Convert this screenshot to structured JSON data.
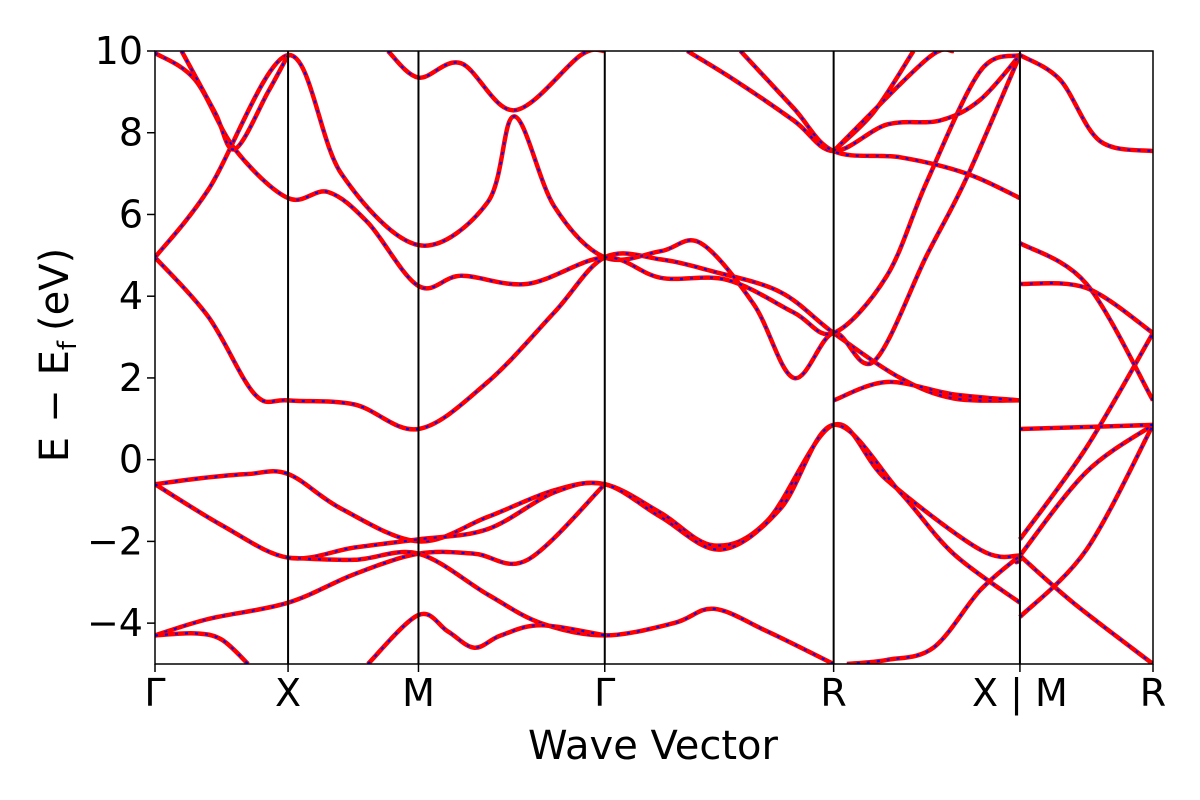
{
  "chart_data": {
    "type": "line",
    "title": "",
    "xlabel": "Wave Vector",
    "ylabel_parts": {
      "e": "E",
      "minus": "−",
      "ef": "E",
      "ef_sub": "f",
      "unit": "(eV)"
    },
    "ylim": [
      -5,
      10
    ],
    "yticks": [
      {
        "value": -4,
        "label": "−4"
      },
      {
        "value": -2,
        "label": "−2"
      },
      {
        "value": 0,
        "label": "0"
      },
      {
        "value": 2,
        "label": "2"
      },
      {
        "value": 4,
        "label": "4"
      },
      {
        "value": 6,
        "label": "6"
      },
      {
        "value": 8,
        "label": "8"
      },
      {
        "value": 10,
        "label": "10"
      }
    ],
    "kpath_ticks": [
      {
        "k": 0.0,
        "label": "Γ"
      },
      {
        "k": 1.0,
        "label": "X"
      },
      {
        "k": 1.98,
        "label": "M"
      },
      {
        "k": 3.38,
        "label": "Γ"
      },
      {
        "k": 5.1,
        "label": "R"
      },
      {
        "k": 6.5,
        "label": "X | M"
      },
      {
        "k": 7.5,
        "label": "R"
      }
    ],
    "kmax": 7.5,
    "grid": false,
    "legend": "none",
    "line_colors": {
      "dft": "#ff0000",
      "fit": "#0000ff"
    },
    "bands": [
      [
        [
          0,
          -0.6
        ],
        [
          0.35,
          -0.45
        ],
        [
          0.7,
          -0.35
        ],
        [
          1.0,
          -0.35
        ],
        [
          1.4,
          -1.2
        ],
        [
          1.98,
          -2.0
        ],
        [
          2.5,
          -1.4
        ],
        [
          3.0,
          -0.75
        ],
        [
          3.38,
          -0.6
        ],
        [
          3.8,
          -1.3
        ],
        [
          4.2,
          -2.1
        ],
        [
          4.6,
          -1.5
        ],
        [
          5.1,
          0.85
        ],
        [
          5.5,
          -0.5
        ],
        [
          6.2,
          -2.2
        ],
        [
          6.5,
          -2.35
        ],
        [
          6.5,
          -2.35
        ],
        [
          7.0,
          -0.3
        ],
        [
          7.5,
          0.85
        ]
      ],
      [
        [
          0,
          -0.6
        ],
        [
          0.5,
          -1.6
        ],
        [
          1.0,
          -2.4
        ],
        [
          1.5,
          -2.15
        ],
        [
          1.98,
          -1.95
        ],
        [
          2.5,
          -1.7
        ],
        [
          3.0,
          -0.8
        ],
        [
          3.38,
          -0.6
        ],
        [
          3.8,
          -1.4
        ],
        [
          4.25,
          -2.2
        ],
        [
          4.7,
          -1.2
        ],
        [
          5.1,
          0.85
        ],
        [
          5.6,
          -0.8
        ],
        [
          6.0,
          -2.3
        ],
        [
          6.5,
          -3.5
        ]
      ],
      [
        [
          0,
          -4.3
        ],
        [
          0.4,
          -3.9
        ],
        [
          1.0,
          -3.5
        ],
        [
          1.5,
          -2.8
        ],
        [
          1.98,
          -2.3
        ],
        [
          2.4,
          -2.3
        ],
        [
          2.8,
          -2.45
        ],
        [
          3.38,
          -0.6
        ]
      ],
      [
        [
          0,
          -4.3
        ],
        [
          0.3,
          -4.25
        ],
        [
          0.5,
          -4.4
        ],
        [
          0.7,
          -5.0
        ]
      ],
      [
        [
          1.0,
          -2.4
        ],
        [
          1.5,
          -2.45
        ],
        [
          1.98,
          -2.3
        ],
        [
          2.5,
          -3.3
        ],
        [
          2.9,
          -4.0
        ],
        [
          3.38,
          -4.3
        ],
        [
          3.9,
          -4.0
        ],
        [
          4.2,
          -3.65
        ],
        [
          4.6,
          -4.2
        ],
        [
          5.1,
          -5.0
        ]
      ],
      [
        [
          1.6,
          -5.0
        ],
        [
          1.98,
          -3.8
        ],
        [
          2.2,
          -4.2
        ],
        [
          2.4,
          -4.6
        ],
        [
          2.6,
          -4.3
        ],
        [
          2.9,
          -4.05
        ],
        [
          3.38,
          -4.3
        ]
      ],
      [
        [
          5.2,
          -5.0
        ],
        [
          5.5,
          -4.9
        ],
        [
          5.85,
          -4.6
        ],
        [
          6.2,
          -3.2
        ],
        [
          6.5,
          -2.35
        ]
      ],
      [
        [
          6.5,
          -1.95
        ],
        [
          7.0,
          0.3
        ],
        [
          7.5,
          3.1
        ]
      ],
      [
        [
          6.5,
          -2.35
        ],
        [
          6.9,
          -3.5
        ],
        [
          7.5,
          -5.0
        ]
      ],
      [
        [
          6.5,
          -3.85
        ],
        [
          7.0,
          -2.2
        ],
        [
          7.5,
          0.85
        ]
      ],
      [
        [
          6.5,
          0.75
        ],
        [
          7.0,
          0.8
        ],
        [
          7.5,
          0.85
        ]
      ],
      [
        [
          0,
          4.95
        ],
        [
          0.4,
          3.5
        ],
        [
          0.75,
          1.6
        ],
        [
          1.0,
          1.45
        ],
        [
          1.5,
          1.35
        ],
        [
          1.98,
          0.75
        ],
        [
          2.5,
          1.9
        ],
        [
          3.0,
          3.6
        ],
        [
          3.38,
          4.95
        ],
        [
          3.8,
          4.9
        ],
        [
          4.2,
          4.6
        ],
        [
          4.7,
          4.1
        ],
        [
          5.1,
          3.1
        ],
        [
          5.6,
          2.0
        ],
        [
          6.0,
          1.5
        ],
        [
          6.5,
          1.45
        ]
      ],
      [
        [
          0,
          4.95
        ],
        [
          0.4,
          6.6
        ],
        [
          1.0,
          9.9
        ],
        [
          1.4,
          7.0
        ],
        [
          1.98,
          5.25
        ],
        [
          2.5,
          6.3
        ],
        [
          2.7,
          8.4
        ],
        [
          3.0,
          6.2
        ],
        [
          3.38,
          4.95
        ],
        [
          3.8,
          5.1
        ],
        [
          4.1,
          5.3
        ],
        [
          4.5,
          3.8
        ],
        [
          4.8,
          2.0
        ],
        [
          5.1,
          3.1
        ],
        [
          5.4,
          2.4
        ],
        [
          5.8,
          5.0
        ],
        [
          6.1,
          6.9
        ],
        [
          6.5,
          9.9
        ]
      ],
      [
        [
          0,
          9.95
        ],
        [
          0.3,
          9.3
        ],
        [
          0.6,
          7.6
        ],
        [
          1.0,
          6.4
        ],
        [
          1.3,
          6.55
        ],
        [
          1.6,
          5.8
        ],
        [
          1.98,
          4.25
        ],
        [
          2.3,
          4.5
        ],
        [
          2.8,
          4.3
        ],
        [
          3.38,
          4.95
        ],
        [
          3.8,
          4.45
        ],
        [
          4.3,
          4.4
        ],
        [
          4.8,
          3.6
        ],
        [
          5.1,
          3.1
        ],
        [
          5.5,
          4.5
        ],
        [
          5.8,
          6.8
        ],
        [
          6.2,
          9.5
        ],
        [
          6.5,
          9.9
        ]
      ],
      [
        [
          1.75,
          10.0
        ],
        [
          1.98,
          9.35
        ],
        [
          2.3,
          9.7
        ],
        [
          2.7,
          8.55
        ],
        [
          3.2,
          9.9
        ],
        [
          3.38,
          10.0
        ]
      ],
      [
        [
          0.2,
          10.0
        ],
        [
          0.45,
          8.5
        ],
        [
          0.6,
          7.6
        ],
        [
          0.85,
          9.0
        ],
        [
          1.0,
          9.9
        ]
      ],
      [
        [
          4.0,
          10.0
        ],
        [
          4.35,
          9.3
        ],
        [
          4.8,
          8.3
        ],
        [
          5.1,
          7.55
        ],
        [
          5.5,
          8.2
        ],
        [
          5.9,
          8.3
        ],
        [
          6.2,
          8.8
        ],
        [
          6.5,
          9.9
        ]
      ],
      [
        [
          4.4,
          10.0
        ],
        [
          4.8,
          8.6
        ],
        [
          5.1,
          7.55
        ],
        [
          5.6,
          7.4
        ],
        [
          6.1,
          7.0
        ],
        [
          6.5,
          6.4
        ]
      ],
      [
        [
          5.1,
          7.55
        ],
        [
          5.4,
          8.5
        ],
        [
          5.7,
          10.0
        ]
      ],
      [
        [
          5.1,
          7.55
        ],
        [
          5.8,
          9.8
        ],
        [
          6.0,
          10.0
        ]
      ],
      [
        [
          6.5,
          5.3
        ],
        [
          7.0,
          4.3
        ],
        [
          7.5,
          1.45
        ]
      ],
      [
        [
          6.5,
          4.3
        ],
        [
          7.0,
          4.2
        ],
        [
          7.5,
          3.1
        ]
      ],
      [
        [
          6.5,
          9.9
        ],
        [
          6.8,
          9.3
        ],
        [
          7.1,
          7.8
        ],
        [
          7.5,
          7.55
        ]
      ],
      [
        [
          5.1,
          1.45
        ],
        [
          5.5,
          1.9
        ],
        [
          6.0,
          1.6
        ],
        [
          6.5,
          1.45
        ]
      ]
    ]
  }
}
